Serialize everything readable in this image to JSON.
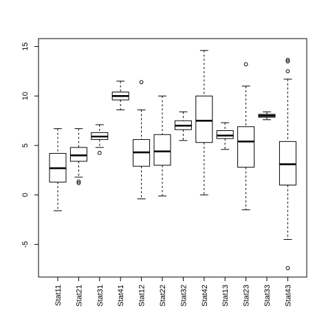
{
  "chart_data": {
    "type": "boxplot",
    "categories": [
      "Stat11",
      "Stat21",
      "Stat31",
      "Stat41",
      "Stat12",
      "Stat22",
      "Stat32",
      "Stat42",
      "Stat13",
      "Stat23",
      "Stat33",
      "Stat43"
    ],
    "boxes": [
      {
        "whisker_low": -1.6,
        "q1": 1.3,
        "median": 2.7,
        "q3": 4.2,
        "whisker_high": 6.7,
        "outliers": []
      },
      {
        "whisker_low": 1.8,
        "q1": 3.4,
        "median": 4.0,
        "q3": 4.8,
        "whisker_high": 6.7,
        "outliers": [
          1.35,
          1.2
        ]
      },
      {
        "whisker_low": 4.8,
        "q1": 5.6,
        "median": 5.9,
        "q3": 6.3,
        "whisker_high": 7.1,
        "outliers": [
          4.25
        ]
      },
      {
        "whisker_low": 8.6,
        "q1": 9.6,
        "median": 10.0,
        "q3": 10.4,
        "whisker_high": 11.5,
        "outliers": []
      },
      {
        "whisker_low": -0.4,
        "q1": 2.9,
        "median": 4.3,
        "q3": 5.6,
        "whisker_high": 8.6,
        "outliers": [
          11.4
        ]
      },
      {
        "whisker_low": -0.1,
        "q1": 3.0,
        "median": 4.4,
        "q3": 6.1,
        "whisker_high": 10.0,
        "outliers": []
      },
      {
        "whisker_low": 5.5,
        "q1": 6.6,
        "median": 7.0,
        "q3": 7.5,
        "whisker_high": 8.4,
        "outliers": []
      },
      {
        "whisker_low": 0.0,
        "q1": 5.3,
        "median": 7.5,
        "q3": 10.0,
        "whisker_high": 14.6,
        "outliers": []
      },
      {
        "whisker_low": 4.6,
        "q1": 5.7,
        "median": 6.0,
        "q3": 6.5,
        "whisker_high": 7.3,
        "outliers": []
      },
      {
        "whisker_low": -1.5,
        "q1": 2.8,
        "median": 5.4,
        "q3": 6.9,
        "whisker_high": 11.0,
        "outliers": [
          13.2
        ]
      },
      {
        "whisker_low": 7.6,
        "q1": 7.85,
        "median": 8.0,
        "q3": 8.15,
        "whisker_high": 8.4,
        "outliers": []
      },
      {
        "whisker_low": -4.5,
        "q1": 1.0,
        "median": 3.1,
        "q3": 5.4,
        "whisker_high": 11.7,
        "outliers": [
          12.5,
          13.5,
          13.65,
          -7.4
        ]
      }
    ],
    "yticks": [
      -5,
      0,
      5,
      10,
      15
    ],
    "ylim": [
      -8.3,
      15.8
    ],
    "title": "",
    "xlabel": "",
    "ylabel": "",
    "grid": false,
    "legend": "none",
    "colors": {
      "box_fill": "#ffffff",
      "stroke": "#000000"
    }
  }
}
